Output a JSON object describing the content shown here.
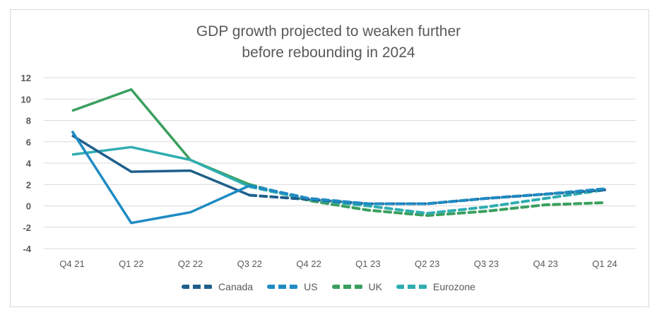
{
  "chart_data": {
    "type": "line",
    "title": "GDP growth projected to weaken further before rebounding in 2024",
    "title_lines": [
      "GDP growth projected to weaken further",
      "before rebounding in 2024"
    ],
    "xlabel": "",
    "ylabel": "",
    "categories": [
      "Q4 21",
      "Q1 22",
      "Q2 22",
      "Q3 22",
      "Q4 22",
      "Q1 23",
      "Q2 23",
      "Q3 23",
      "Q4 23",
      "Q1 24"
    ],
    "projection_starts_after": "Q3 22",
    "ylim": [
      -4,
      12
    ],
    "yticks": [
      12,
      10,
      8,
      6,
      4,
      2,
      0,
      -2,
      -4
    ],
    "grid": true,
    "legend_position": "bottom",
    "series": [
      {
        "name": "Canada",
        "color": "#1f5f8b",
        "values": [
          6.6,
          3.2,
          3.3,
          1.0,
          0.6,
          0.2,
          0.2,
          0.7,
          1.1,
          1.5
        ]
      },
      {
        "name": "US",
        "color": "#1f8bc3",
        "values": [
          7.0,
          -1.6,
          -0.6,
          1.9,
          0.7,
          0.2,
          0.2,
          0.7,
          1.1,
          1.6
        ]
      },
      {
        "name": "UK",
        "color": "#3a9f5e",
        "values": [
          8.9,
          10.9,
          4.3,
          2.0,
          0.5,
          -0.4,
          -0.9,
          -0.5,
          0.1,
          0.3
        ]
      },
      {
        "name": "Eurozone",
        "color": "#2fadb0",
        "values": [
          4.8,
          5.5,
          4.3,
          1.8,
          0.6,
          0.0,
          -0.7,
          -0.1,
          0.7,
          1.5
        ]
      }
    ]
  }
}
